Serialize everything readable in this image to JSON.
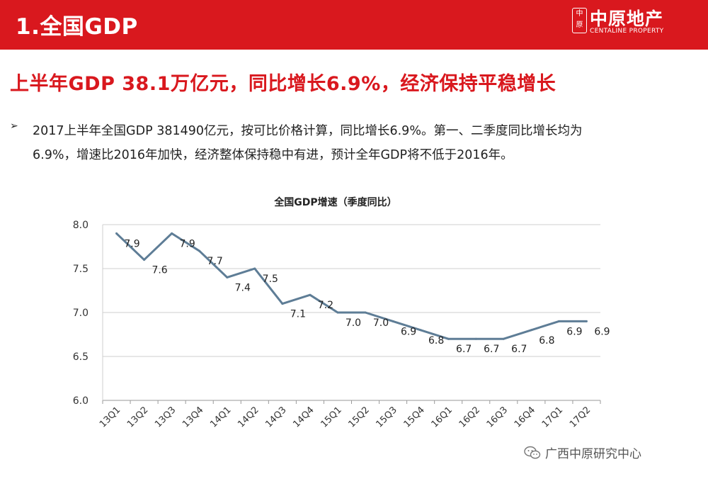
{
  "header": {
    "slide_title": "1.全国GDP",
    "logo_cn": "中原地产",
    "logo_en": "CENTALINE PROPERTY",
    "logo_mark_text": "中原",
    "bar_color": "#d9181e"
  },
  "headline": "上半年GDP 38.1万亿元，同比增长6.9%，经济保持平稳增长",
  "bullet": {
    "marker": "➢",
    "line1": "2017上半年全国GDP 381490亿元，按可比价格计算，同比增长6.9%。第一、二季度同比增长均为",
    "line2": "6.9%，增速比2016年加快，经济整体保持稳中有进，预计全年GDP将不低于2016年。"
  },
  "chart_data": {
    "type": "line",
    "title": "全国GDP增速（季度同比）",
    "categories": [
      "13Q1",
      "13Q2",
      "13Q3",
      "13Q4",
      "14Q1",
      "14Q2",
      "14Q3",
      "14Q4",
      "15Q1",
      "15Q2",
      "15Q3",
      "15Q4",
      "16Q1",
      "16Q2",
      "16Q3",
      "16Q4",
      "17Q1",
      "17Q2"
    ],
    "values": [
      7.9,
      7.6,
      7.9,
      7.7,
      7.4,
      7.5,
      7.1,
      7.2,
      7.0,
      7.0,
      6.9,
      6.8,
      6.7,
      6.7,
      6.7,
      6.8,
      6.9,
      6.9
    ],
    "data_labels": [
      "7.9",
      "7.6",
      "7.9",
      "7.7",
      "7.4",
      "7.5",
      "7.1",
      "7.2",
      "7.0",
      "7.0",
      "6.9",
      "6.8",
      "6.7",
      "6.7",
      "6.7",
      "6.8",
      "6.9",
      "6.9"
    ],
    "ylim": [
      6.0,
      8.0
    ],
    "yticks": [
      "6.0",
      "6.5",
      "7.0",
      "7.5",
      "8.0"
    ],
    "grid": true,
    "legend": "none",
    "line_color": "#5e7d96"
  },
  "footer": {
    "source_text": "广西中原研究中心",
    "icon": "wechat-icon"
  }
}
